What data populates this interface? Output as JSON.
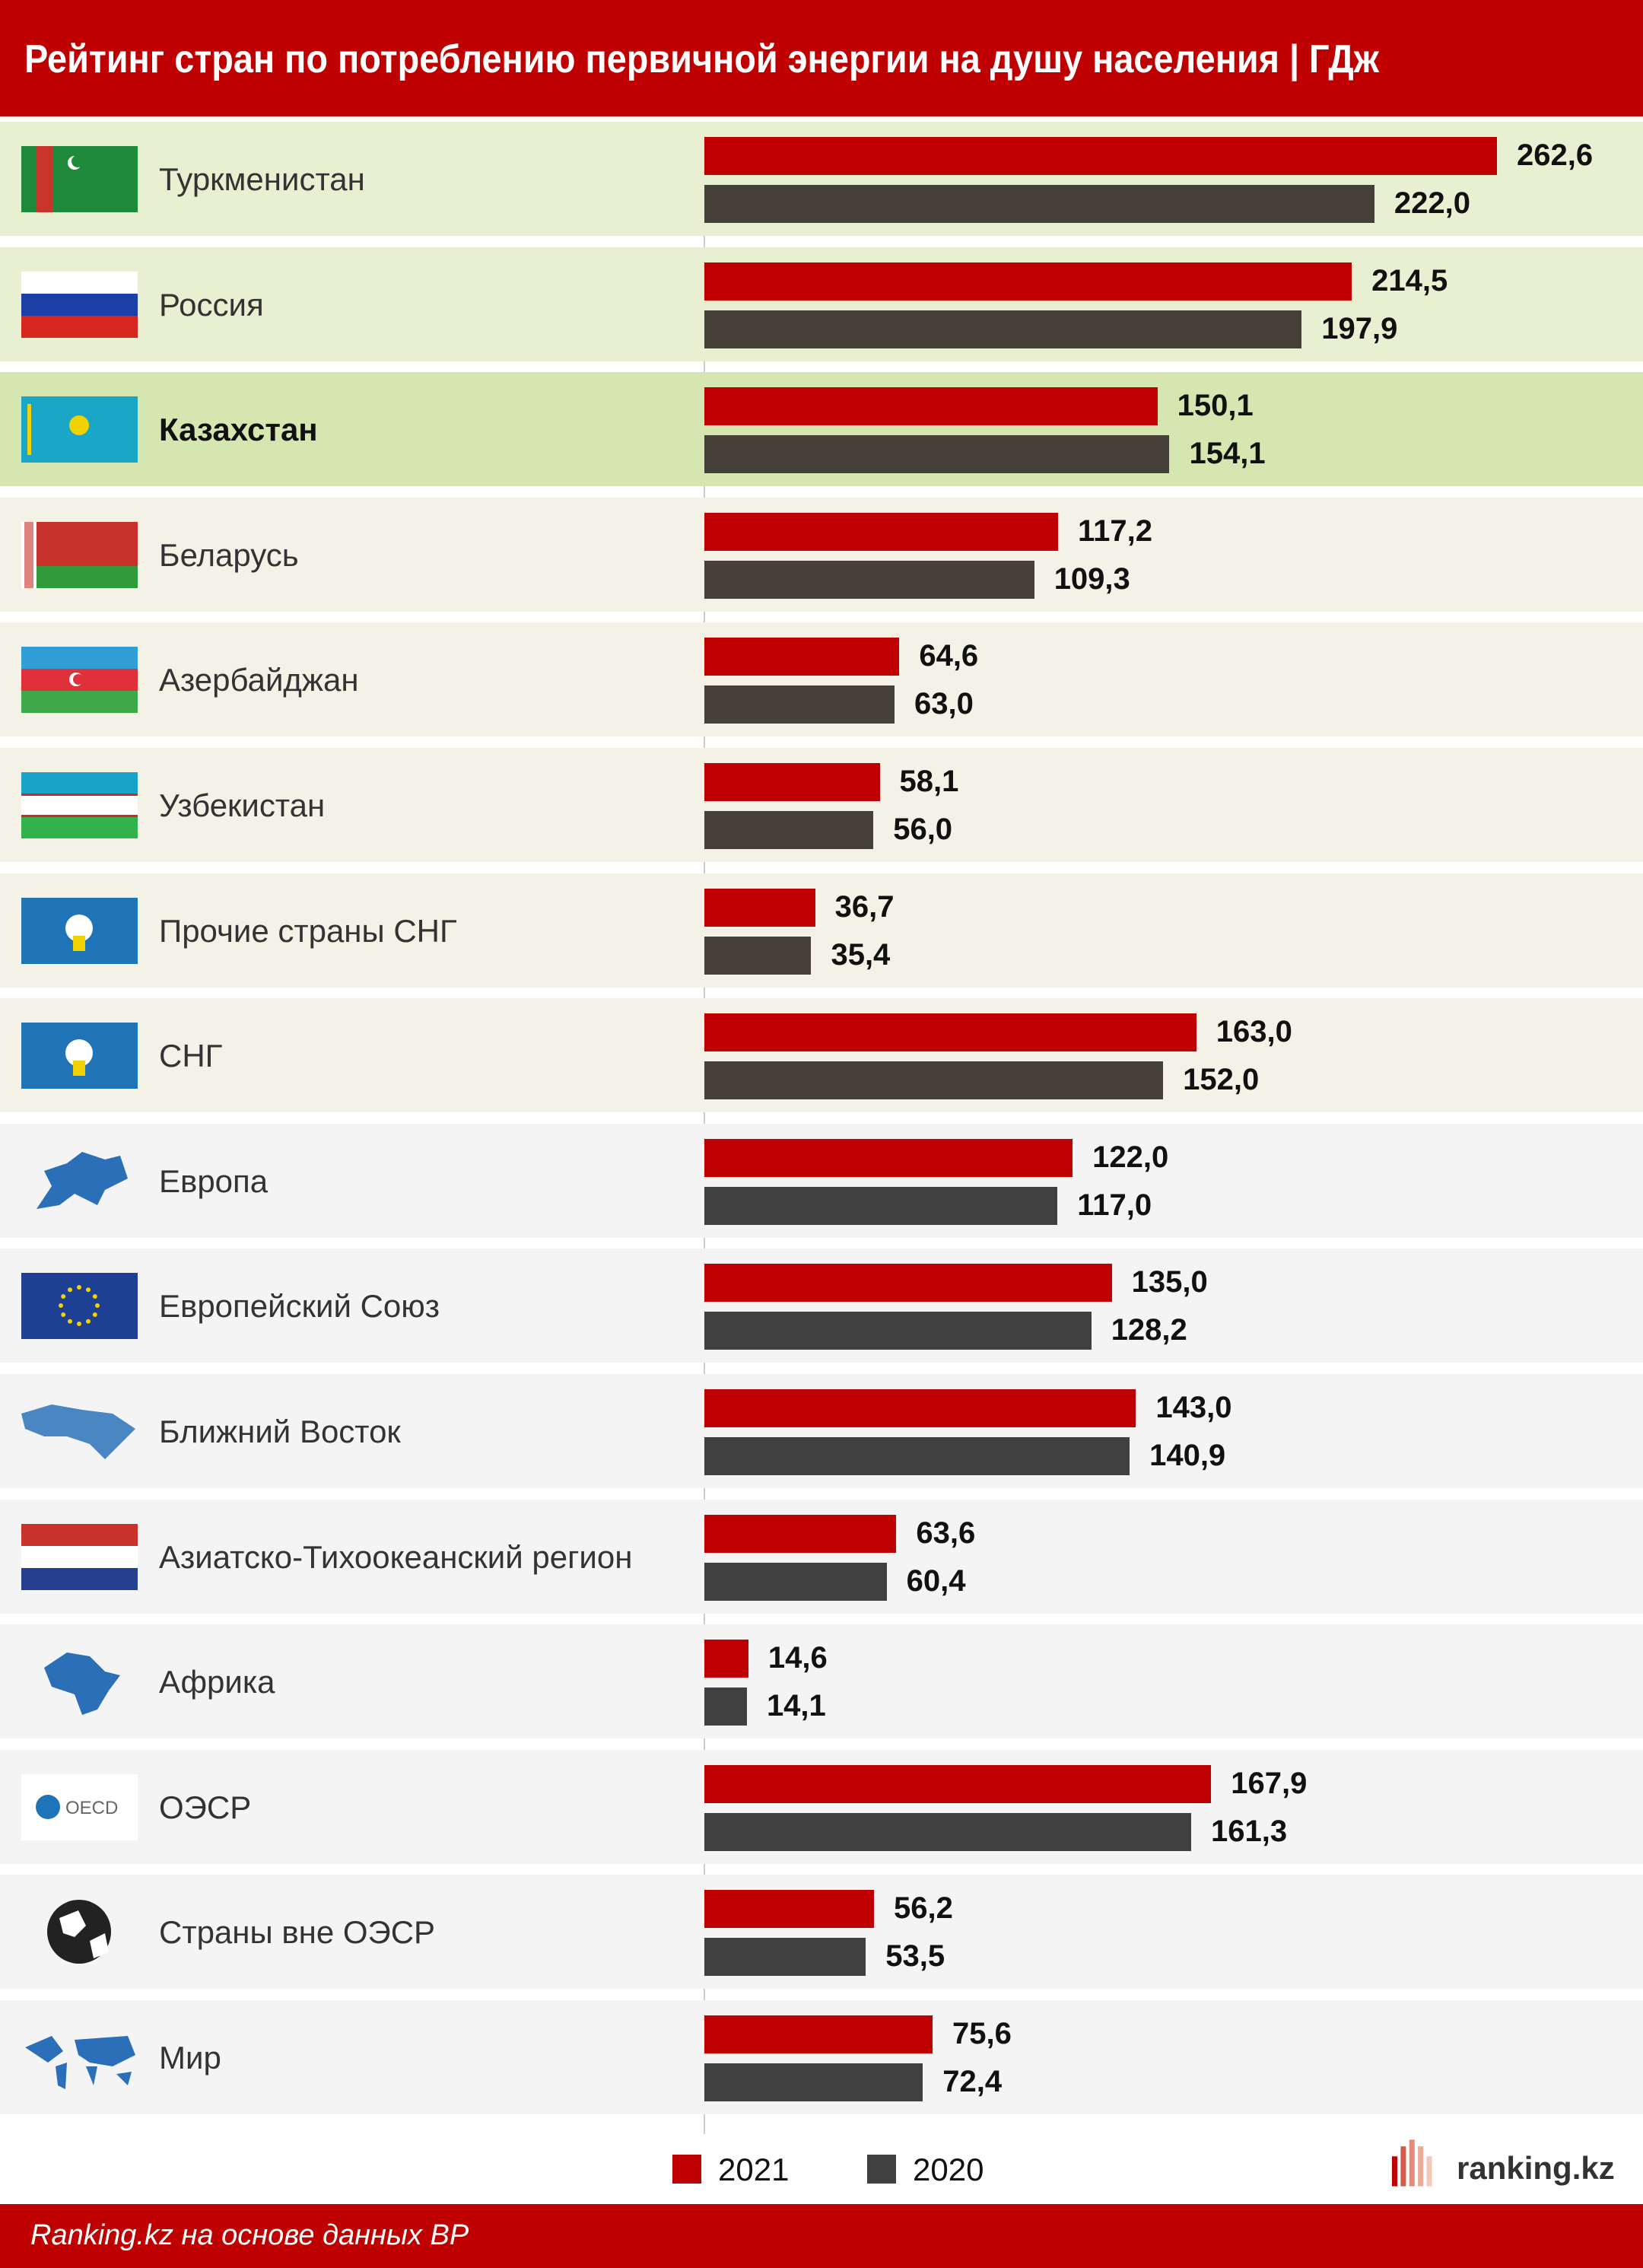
{
  "header": {
    "title": "Рейтинг стран по потреблению первичной энергии на душу населения | ГДж"
  },
  "colors": {
    "s2021": "#c00000",
    "s2020": "#454138",
    "brand": "#bf0000"
  },
  "chart_data": {
    "type": "bar",
    "orientation": "horizontal",
    "title": "Рейтинг стран по потреблению первичной энергии на душу населения | ГДж",
    "categories": [
      "Туркменистан",
      "Россия",
      "Казахстан",
      "Беларусь",
      "Азербайджан",
      "Узбекистан",
      "Прочие страны СНГ",
      "СНГ",
      "Европа",
      "Европейский Союз",
      "Ближний Восток",
      "Азиатско-Тихоокеанский регион",
      "Африка",
      "ОЭСР",
      "Страны вне ОЭСР",
      "Мир"
    ],
    "icons": [
      "flag-turkmenistan",
      "flag-russia",
      "flag-kazakhstan",
      "flag-belarus",
      "flag-azerbaijan",
      "flag-uzbekistan",
      "cis-emblem",
      "cis-emblem",
      "europe-map",
      "flag-eu",
      "middle-east-map",
      "asia-pacific-stripes",
      "africa-map",
      "oecd-logo",
      "globe",
      "world-map"
    ],
    "row_bg": [
      "#e9f0d2",
      "#e9f0d2",
      "#d6e6b1",
      "#f4f1e6",
      "#f4f1e6",
      "#f4f1e6",
      "#f4f1e6",
      "#f4f1e6",
      "#f4f4f4",
      "#f4f4f4",
      "#f4f4f4",
      "#f4f4f4",
      "#f4f4f4",
      "#f4f4f4",
      "#f4f4f4",
      "#f4f4f4"
    ],
    "highlight": "Казахстан",
    "series": [
      {
        "name": "2021",
        "values": [
          "262,6",
          "214,5",
          "150,1",
          "117,2",
          "64,6",
          "58,1",
          "36,7",
          "163,0",
          "122,0",
          "135,0",
          "143,0",
          "63,6",
          "14,6",
          "167,9",
          "56,2",
          "75,6"
        ]
      },
      {
        "name": "2020",
        "values": [
          "222,0",
          "197,9",
          "154,1",
          "109,3",
          "63,0",
          "56,0",
          "35,4",
          "152,0",
          "117,0",
          "128,2",
          "140,9",
          "60,4",
          "14,1",
          "161,3",
          "53,5",
          "72,4"
        ]
      }
    ],
    "xlim": [
      0,
      280
    ],
    "grid": false,
    "legend": "bottom-center"
  },
  "legend": {
    "items": [
      "2021",
      "2020"
    ]
  },
  "brand": {
    "logo": "ranking.kz"
  },
  "footer": {
    "source": "Ranking.kz на основе данных BP"
  }
}
